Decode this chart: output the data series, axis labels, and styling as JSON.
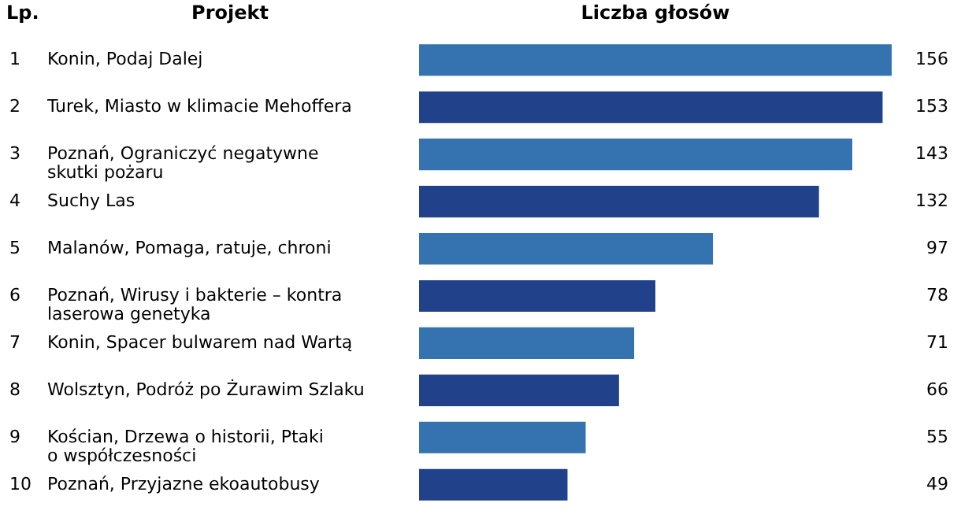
{
  "chart_data": {
    "type": "bar",
    "orientation": "horizontal",
    "xlabel": "Liczba głosów",
    "ylabel": "Projekt",
    "categories": [
      "Konin, Podaj Dalej",
      "Turek, Miasto w klimacie Mehoffera",
      "Poznań, Ograniczyć negatywne skutki pożaru",
      "Suchy Las",
      "Malanów, Pomaga, ratuje, chroni",
      "Poznań, Wirusy i bakterie – kontra laserowa genetyka",
      "Konin, Spacer bulwarem nad Wartą",
      "Wolsztyn, Podróż po Żurawim Szlaku",
      "Kościan, Drzewa o historii, Ptaki o współczesności",
      "Poznań, Przyjazne ekoautobusy"
    ],
    "values": [
      156,
      153,
      143,
      132,
      97,
      78,
      71,
      66,
      55,
      49
    ],
    "colors": [
      "#3572b0",
      "#21428a",
      "#3572b0",
      "#21428a",
      "#3572b0",
      "#21428a",
      "#3572b0",
      "#21428a",
      "#3572b0",
      "#21428a"
    ],
    "data_labels": true,
    "annotations": [
      "Lp.",
      "1",
      "2",
      "3",
      "4",
      "5",
      "6",
      "7",
      "8",
      "9",
      "10"
    ]
  }
}
